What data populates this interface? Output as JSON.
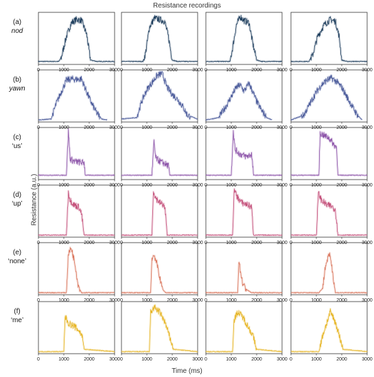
{
  "figure": {
    "title": "Resistance recordings",
    "xlabel": "Time (ms)",
    "ylabel": "Resistance (a.u.)"
  },
  "rows": [
    {
      "letter": "(a)",
      "name": "nod",
      "italic": true,
      "color": "#1f3f5e"
    },
    {
      "letter": "(b)",
      "name": "yawn",
      "italic": true,
      "color": "#4a5a9a"
    },
    {
      "letter": "(c)",
      "name": "‘us’",
      "italic": false,
      "color": "#8e56aa"
    },
    {
      "letter": "(d)",
      "name": "‘up’",
      "italic": false,
      "color": "#c4507a"
    },
    {
      "letter": "(e)",
      "name": "‘none’",
      "italic": false,
      "color": "#d9735a"
    },
    {
      "letter": "(f)",
      "name": "‘me’",
      "italic": false,
      "color": "#e6b422"
    }
  ],
  "chart_data": {
    "type": "line",
    "rows": 6,
    "cols": 4,
    "xlim": [
      0,
      3000
    ],
    "ylim": [
      0,
      1
    ],
    "xticks": [
      0,
      1000,
      2000,
      3000
    ],
    "grid": false,
    "panels": [
      [
        {
          "x": [
            0,
            800,
            900,
            1100,
            1300,
            1500,
            1700,
            1900,
            2050,
            2300,
            3000
          ],
          "y": [
            0.02,
            0.02,
            0.1,
            0.55,
            0.85,
            0.92,
            0.9,
            0.6,
            0.05,
            0.02,
            0.02
          ]
        },
        {
          "x": [
            0,
            850,
            950,
            1100,
            1300,
            1500,
            1700,
            1850,
            2000,
            2200,
            3000
          ],
          "y": [
            0.02,
            0.02,
            0.2,
            0.75,
            0.95,
            0.92,
            0.88,
            0.55,
            0.05,
            0.02,
            0.02
          ]
        },
        {
          "x": [
            0,
            950,
            1050,
            1200,
            1350,
            1500,
            1700,
            1850,
            2000,
            2200,
            3000
          ],
          "y": [
            0.02,
            0.02,
            0.3,
            0.8,
            0.98,
            0.9,
            0.85,
            0.4,
            0.05,
            0.02,
            0.02
          ]
        },
        {
          "x": [
            0,
            700,
            850,
            1050,
            1300,
            1550,
            1750,
            1900,
            2000,
            2200,
            3000
          ],
          "y": [
            0.02,
            0.02,
            0.15,
            0.55,
            0.8,
            0.92,
            0.88,
            0.55,
            0.05,
            0.02,
            0.02
          ]
        }
      ],
      [
        {
          "x": [
            0,
            500,
            700,
            900,
            1100,
            1300,
            1500,
            1700,
            1900,
            2100,
            2300,
            2500,
            2700
          ],
          "y": [
            0.0,
            0.02,
            0.35,
            0.6,
            0.85,
            0.88,
            0.87,
            0.88,
            0.6,
            0.35,
            0.15,
            0.02,
            0.0
          ]
        },
        {
          "x": [
            0,
            600,
            800,
            1000,
            1200,
            1400,
            1600,
            1800,
            2000,
            2200,
            2400,
            2600,
            3000
          ],
          "y": [
            0.02,
            0.05,
            0.4,
            0.65,
            0.8,
            0.95,
            1.0,
            0.7,
            0.55,
            0.45,
            0.3,
            0.1,
            0.02
          ]
        },
        {
          "x": [
            0,
            500,
            800,
            1000,
            1200,
            1350,
            1500,
            1600,
            1700,
            1850,
            2000,
            2200,
            2400,
            2600
          ],
          "y": [
            0.0,
            0.05,
            0.3,
            0.5,
            0.7,
            0.75,
            0.62,
            0.7,
            0.78,
            0.6,
            0.4,
            0.2,
            0.05,
            0.0
          ]
        },
        {
          "x": [
            0,
            500,
            800,
            1000,
            1200,
            1400,
            1600,
            1800,
            2000,
            2200,
            2400,
            2600,
            2800
          ],
          "y": [
            0.0,
            0.1,
            0.4,
            0.6,
            0.75,
            0.85,
            0.9,
            0.82,
            0.7,
            0.5,
            0.3,
            0.12,
            0.0
          ]
        }
      ],
      [
        {
          "x": [
            0,
            1100,
            1180,
            1250,
            1400,
            1600,
            1800,
            1850,
            3000
          ],
          "y": [
            0.05,
            0.05,
            1.0,
            0.4,
            0.35,
            0.33,
            0.32,
            0.05,
            0.05
          ]
        },
        {
          "x": [
            0,
            1200,
            1280,
            1350,
            1500,
            1700,
            1850,
            1900,
            3000
          ],
          "y": [
            0.05,
            0.05,
            0.75,
            0.42,
            0.35,
            0.3,
            0.25,
            0.05,
            0.05
          ]
        },
        {
          "x": [
            0,
            1000,
            1080,
            1150,
            1350,
            1600,
            1800,
            1880,
            3000
          ],
          "y": [
            0.05,
            0.05,
            1.0,
            0.6,
            0.5,
            0.45,
            0.5,
            0.05,
            0.05
          ]
        },
        {
          "x": [
            0,
            1100,
            1150,
            1300,
            1500,
            1700,
            1800,
            1850,
            3000
          ],
          "y": [
            0.05,
            0.05,
            0.95,
            0.9,
            0.85,
            0.7,
            0.65,
            0.05,
            0.05
          ]
        }
      ],
      [
        {
          "x": [
            0,
            1100,
            1180,
            1250,
            1400,
            1600,
            1700,
            1800,
            3000
          ],
          "y": [
            0.0,
            0.0,
            0.92,
            0.75,
            0.65,
            0.6,
            0.45,
            0.0,
            0.0
          ]
        },
        {
          "x": [
            0,
            1200,
            1260,
            1350,
            1500,
            1650,
            1720,
            1800,
            3000
          ],
          "y": [
            0.0,
            0.0,
            0.95,
            0.8,
            0.7,
            0.65,
            0.55,
            0.0,
            0.0
          ]
        },
        {
          "x": [
            0,
            1050,
            1120,
            1200,
            1400,
            1650,
            1800,
            1880,
            3000
          ],
          "y": [
            0.0,
            0.0,
            1.0,
            0.85,
            0.7,
            0.65,
            0.6,
            0.0,
            0.0
          ]
        },
        {
          "x": [
            0,
            1000,
            1080,
            1200,
            1400,
            1600,
            1750,
            1850,
            3000
          ],
          "y": [
            0.0,
            0.0,
            0.9,
            0.75,
            0.65,
            0.62,
            0.55,
            0.0,
            0.0
          ]
        }
      ],
      [
        {
          "x": [
            0,
            1100,
            1180,
            1300,
            1450,
            1550,
            1650,
            1700,
            3000
          ],
          "y": [
            0.0,
            0.0,
            0.85,
            0.95,
            0.6,
            0.2,
            0.05,
            0.0,
            0.0
          ]
        },
        {
          "x": [
            0,
            1150,
            1200,
            1300,
            1450,
            1550,
            1650,
            1750,
            3000
          ],
          "y": [
            0.0,
            0.0,
            0.75,
            0.8,
            0.5,
            0.2,
            0.05,
            0.0,
            0.0
          ]
        },
        {
          "x": [
            0,
            1250,
            1300,
            1350,
            1450,
            1550,
            1650,
            1800,
            3000
          ],
          "y": [
            0.0,
            0.0,
            0.7,
            0.5,
            0.2,
            0.1,
            0.05,
            0.0,
            0.0
          ]
        },
        {
          "x": [
            0,
            1100,
            1250,
            1350,
            1450,
            1550,
            1650,
            1750,
            3000
          ],
          "y": [
            0.0,
            0.0,
            0.1,
            0.55,
            0.75,
            0.8,
            0.4,
            0.0,
            0.0
          ]
        }
      ],
      [
        {
          "x": [
            0,
            1000,
            1050,
            1200,
            1400,
            1600,
            1750,
            1800,
            3000
          ],
          "y": [
            0.0,
            0.0,
            0.75,
            0.6,
            0.55,
            0.45,
            0.3,
            0.05,
            0.0
          ]
        },
        {
          "x": [
            0,
            1100,
            1150,
            1300,
            1500,
            1700,
            1850,
            2050,
            3000
          ],
          "y": [
            0.0,
            0.0,
            0.85,
            0.95,
            0.85,
            0.65,
            0.4,
            0.05,
            0.0
          ]
        },
        {
          "x": [
            0,
            1050,
            1100,
            1250,
            1450,
            1650,
            1850,
            2000,
            3000
          ],
          "y": [
            0.0,
            0.0,
            0.65,
            0.85,
            0.75,
            0.55,
            0.35,
            0.05,
            0.0
          ]
        },
        {
          "x": [
            0,
            1100,
            1250,
            1400,
            1550,
            1700,
            1850,
            2050,
            3000
          ],
          "y": [
            0.0,
            0.0,
            0.35,
            0.6,
            0.85,
            0.7,
            0.45,
            0.05,
            0.0
          ]
        }
      ]
    ]
  }
}
